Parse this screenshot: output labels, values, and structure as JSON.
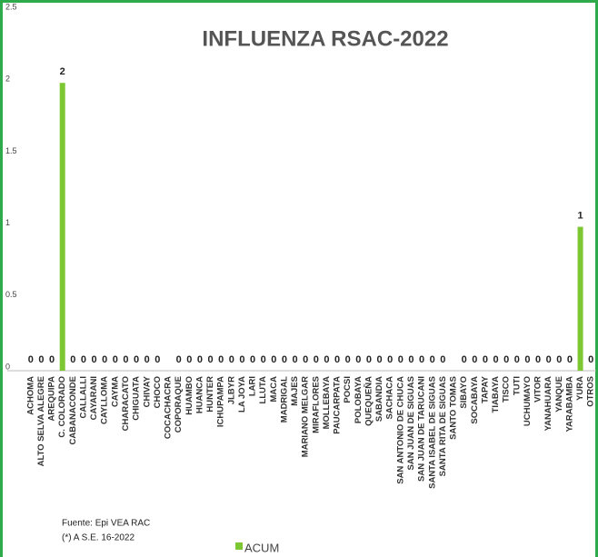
{
  "chart_data": {
    "type": "bar",
    "title": "INFLUENZA RSAC-2022",
    "categories": [
      "ACHOMA",
      "ALTO SELVA ALEGRE",
      "AREQUIPA",
      "C. COLORADO",
      "CABANACONDE",
      "CALLALLI",
      "CAYARANI",
      "CAYLLOMA",
      "CAYMA",
      "CHARACATO",
      "CHIGUATA",
      "CHIVAY",
      "CHOCO",
      "COCACHACRA",
      "COPORAQUE",
      "HUAMBO",
      "HUANCA",
      "HUNTER",
      "ICHUPAMPA",
      "JLBYR",
      "LA JOYA",
      "LARI",
      "LLUTA",
      "MACA",
      "MADRIGAL",
      "MAJES",
      "MARIANO MELGAR",
      "MIRAFLORES",
      "MOLLEBAYA",
      "PAUCARPATA",
      "POCSI",
      "POLOBAYA",
      "QUEQUEÑA",
      "SABANDIA",
      "SACHACA",
      "SAN ANTONIO DE CHUCA",
      "SAN JUAN DE SIGUAS",
      "SAN JUAN DE TARUCANI",
      "SANTA ISABEL DE SIGUAS",
      "SANTA RITA DE SIGUAS",
      "SANTO TOMAS",
      "SIBAYO",
      "SOCABAYA",
      "TAPAY",
      "TIABAYA",
      "TISCO",
      "TUTI",
      "UCHUMAYO",
      "VITOR",
      "YANAHUARA",
      "YANQUE",
      "YARABAMBA",
      "YURA",
      "OTROS"
    ],
    "series": [
      {
        "name": "ACUM",
        "color": "#7dc832",
        "values": [
          0,
          0,
          0,
          2,
          0,
          0,
          0,
          0,
          0,
          0,
          0,
          0,
          0,
          null,
          0,
          0,
          0,
          0,
          0,
          0,
          0,
          0,
          0,
          0,
          0,
          0,
          0,
          0,
          0,
          0,
          0,
          0,
          0,
          0,
          0,
          0,
          0,
          0,
          0,
          0,
          null,
          0,
          0,
          0,
          0,
          0,
          0,
          0,
          0,
          0,
          0,
          0,
          1,
          0
        ]
      }
    ],
    "ylim": [
      0,
      2.5
    ],
    "yticks": [
      0,
      0.5,
      1,
      1.5,
      2,
      2.5
    ],
    "grid": false,
    "source": "Fuente:  Epi VEA RAC",
    "note": "(*) A S.E. 16-2022"
  }
}
